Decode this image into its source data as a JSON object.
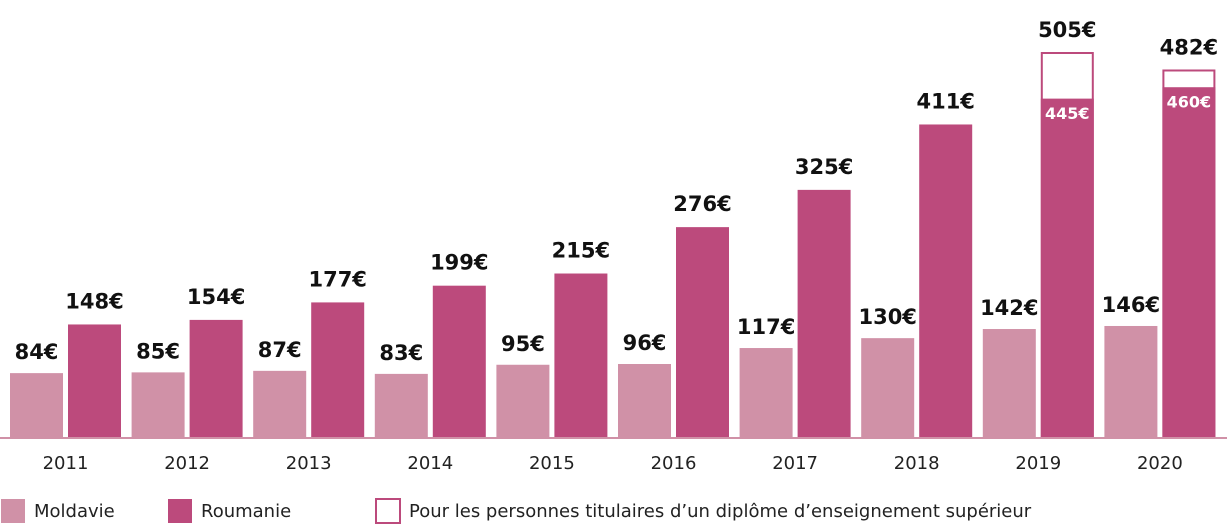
{
  "chart_data": {
    "type": "bar",
    "categories": [
      "2011",
      "2012",
      "2013",
      "2014",
      "2015",
      "2016",
      "2017",
      "2018",
      "2019",
      "2020"
    ],
    "series": [
      {
        "name": "Moldavie",
        "color": "#d091a7",
        "values": [
          84,
          85,
          87,
          83,
          95,
          96,
          117,
          130,
          142,
          146
        ],
        "value_labels": [
          "84€",
          "85€",
          "87€",
          "83€",
          "95€",
          "96€",
          "117€",
          "130€",
          "142€",
          "146€"
        ]
      },
      {
        "name": "Roumanie",
        "color": "#bc4a7c",
        "values": [
          148,
          154,
          177,
          199,
          215,
          276,
          325,
          411,
          445,
          460
        ],
        "value_labels": [
          "148€",
          "154€",
          "177€",
          "199€",
          "215€",
          "276€",
          "325€",
          "411€",
          "445€",
          "460€"
        ]
      },
      {
        "name": "Pour les personnes titulaires d’un diplôme d’enseignement supérieur",
        "color": "#bc4a7c",
        "values": [
          null,
          null,
          null,
          null,
          null,
          null,
          null,
          null,
          505,
          482
        ],
        "value_labels": [
          null,
          null,
          null,
          null,
          null,
          null,
          null,
          null,
          "505€",
          "482€"
        ]
      }
    ]
  }
}
